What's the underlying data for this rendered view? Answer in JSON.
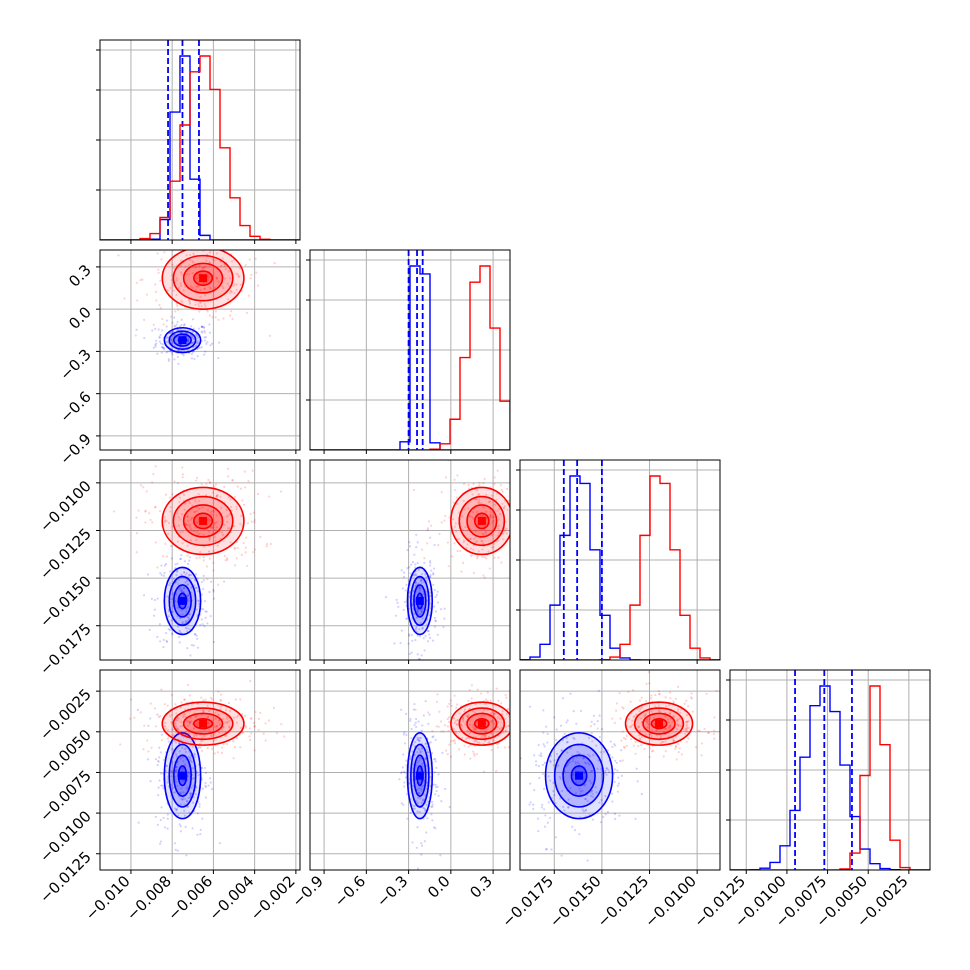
{
  "chart_data": {
    "type": "corner",
    "parameters": [
      {
        "range": [
          -0.0115,
          -0.0018
        ],
        "ticks": [
          -0.01,
          -0.008,
          -0.006,
          -0.004,
          -0.002
        ],
        "tick_labels": [
          "−0.010",
          "−0.008",
          "−0.006",
          "−0.004",
          "−0.002"
        ]
      },
      {
        "range": [
          -1.0,
          0.42
        ],
        "ticks": [
          -0.9,
          -0.6,
          -0.3,
          0.0,
          0.3
        ],
        "tick_labels": [
          "−0.9",
          "−0.6",
          "−0.3",
          "0.0",
          "0.3"
        ]
      },
      {
        "range": [
          -0.0193,
          -0.0088
        ],
        "ticks": [
          -0.0175,
          -0.015,
          -0.0125,
          -0.01
        ],
        "tick_labels": [
          "−0.0175",
          "−0.0150",
          "−0.0125",
          "−0.0100"
        ]
      },
      {
        "range": [
          -0.0135,
          -0.0012
        ],
        "ticks": [
          -0.0125,
          -0.01,
          -0.0075,
          -0.005,
          -0.0025
        ],
        "tick_labels": [
          "−0.0125",
          "−0.0100",
          "−0.0075",
          "−0.0050",
          "−0.0025"
        ]
      }
    ],
    "series": [
      {
        "color": "#0000ff",
        "mean": [
          -0.0075,
          -0.22,
          -0.0162,
          -0.0077
        ],
        "std": [
          0.0004,
          0.04,
          0.0008,
          0.0012
        ],
        "quantiles": [
          [
            -0.0082,
            -0.0075,
            -0.0067
          ],
          [
            -0.3,
            -0.24,
            -0.2
          ],
          [
            -0.017,
            -0.0163,
            -0.015
          ],
          [
            -0.0095,
            -0.0077,
            -0.006
          ]
        ]
      },
      {
        "color": "#ff0000",
        "mean": [
          -0.0065,
          0.22,
          -0.012,
          -0.0045
        ],
        "std": [
          0.0009,
          0.1,
          0.0008,
          0.0006
        ]
      }
    ],
    "grid": true
  }
}
